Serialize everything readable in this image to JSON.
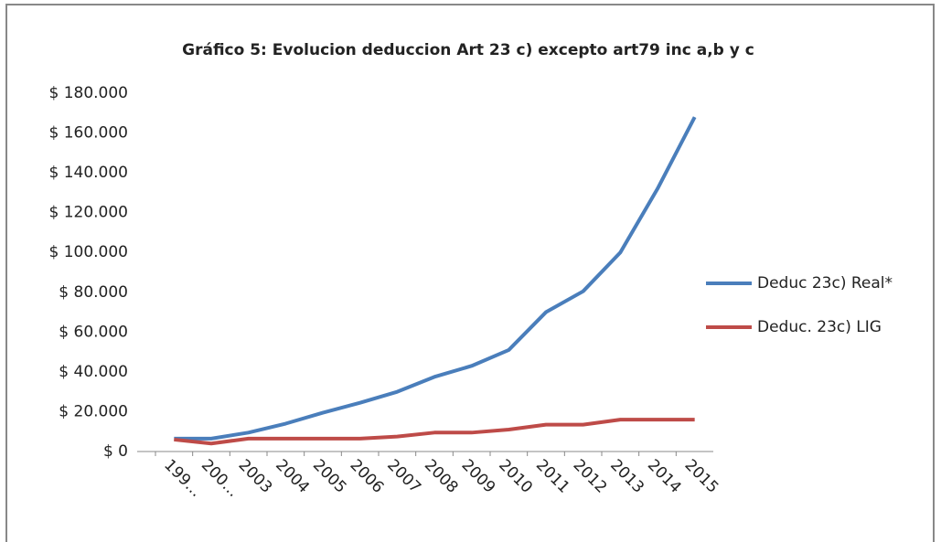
{
  "chart_data": {
    "type": "line",
    "title": "Gráfico 5: Evolucion deduccion Art 23 c) excepto art79 inc a,b y c",
    "categories": [
      "199…",
      "200…",
      "2003",
      "2004",
      "2005",
      "2006",
      "2007",
      "2008",
      "2009",
      "2010",
      "2011",
      "2012",
      "2013",
      "2014",
      "2015"
    ],
    "series": [
      {
        "name": "Deduc 23c) Real*",
        "color": "#4a7ebb",
        "values": [
          6500,
          6500,
          9500,
          14000,
          19500,
          24500,
          30000,
          37500,
          43000,
          51000,
          70000,
          80500,
          100000,
          132000,
          168000
        ]
      },
      {
        "name": "Deduc. 23c) LIG",
        "color": "#be4b48",
        "values": [
          6000,
          4000,
          6500,
          6500,
          6500,
          6500,
          7500,
          9500,
          9500,
          11000,
          13500,
          13500,
          16000,
          16000,
          16000
        ]
      }
    ],
    "ylim": [
      0,
      180000
    ],
    "yticks": [
      {
        "value": 0,
        "label": "$ 0"
      },
      {
        "value": 20000,
        "label": "$ 20.000"
      },
      {
        "value": 40000,
        "label": "$ 40.000"
      },
      {
        "value": 60000,
        "label": "$ 60.000"
      },
      {
        "value": 80000,
        "label": "$ 80.000"
      },
      {
        "value": 100000,
        "label": "$ 100.000"
      },
      {
        "value": 120000,
        "label": "$ 120.000"
      },
      {
        "value": 140000,
        "label": "$ 140.000"
      },
      {
        "value": 160000,
        "label": "$ 160.000"
      },
      {
        "value": 180000,
        "label": "$ 180.000"
      }
    ],
    "grid": false,
    "legend": "right"
  }
}
